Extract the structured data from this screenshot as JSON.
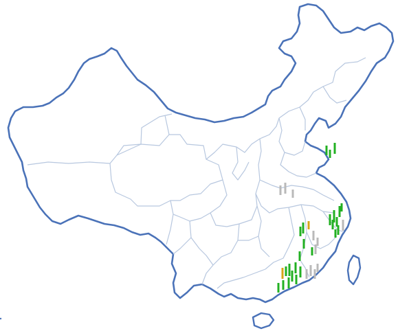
{
  "map": {
    "title": "",
    "region": "china",
    "colors": {
      "outline": "#4a72b8",
      "province_border": "#b7c7df",
      "status_green": "#22b022",
      "status_gray": "#b9b9b9",
      "status_gold": "#d8a418"
    },
    "marker_clusters": [
      {
        "name": "bohai-cluster",
        "colors": [
          "green",
          "green",
          "green"
        ]
      },
      {
        "name": "central-gray-cluster",
        "colors": [
          "gray",
          "gray",
          "gray"
        ]
      },
      {
        "name": "zhejiang-fujian-cluster",
        "colors": [
          "green",
          "green",
          "green",
          "green",
          "green",
          "green",
          "green",
          "gray",
          "green"
        ]
      },
      {
        "name": "jiangxi-cluster",
        "colors": [
          "green",
          "green",
          "gold",
          "gray",
          "gray",
          "green",
          "gray",
          "green",
          "green"
        ]
      },
      {
        "name": "guangdong-cluster",
        "colors": [
          "green",
          "gold",
          "green",
          "green",
          "green",
          "green",
          "gray",
          "gray",
          "gray",
          "green",
          "green",
          "gray",
          "green",
          "green"
        ]
      }
    ]
  }
}
